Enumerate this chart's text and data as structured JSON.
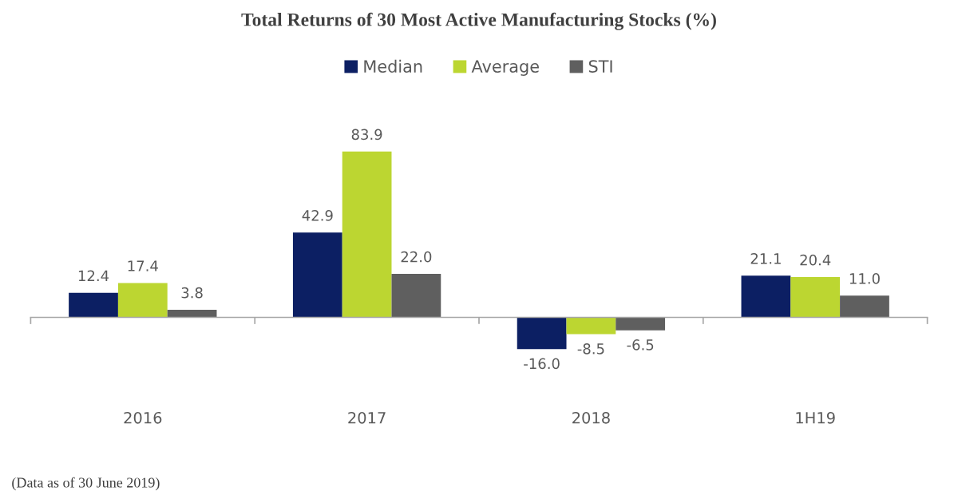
{
  "chart_data": {
    "type": "bar",
    "title": "Total Returns of 30 Most Active Manufacturing Stocks (%)",
    "categories": [
      "2016",
      "2017",
      "2018",
      "1H19"
    ],
    "series": [
      {
        "name": "Median",
        "color": "#0c1f63",
        "values": [
          12.4,
          42.9,
          -16.0,
          21.1
        ],
        "value_labels": [
          "12.4",
          "42.9",
          "-16.0",
          "21.1"
        ]
      },
      {
        "name": "Average",
        "color": "#bcd631",
        "values": [
          17.4,
          83.9,
          -8.5,
          20.4
        ],
        "value_labels": [
          "17.4",
          "83.9",
          "-8.5",
          "20.4"
        ]
      },
      {
        "name": "STI",
        "color": "#5f5f5f",
        "values": [
          3.8,
          22.0,
          -6.5,
          11.0
        ],
        "value_labels": [
          "3.8",
          "22.0",
          "-6.5",
          "11.0"
        ]
      }
    ],
    "legend": "top",
    "tick_labels": "x",
    "annotations": [
      "(Data as of 30 June 2019)"
    ]
  }
}
